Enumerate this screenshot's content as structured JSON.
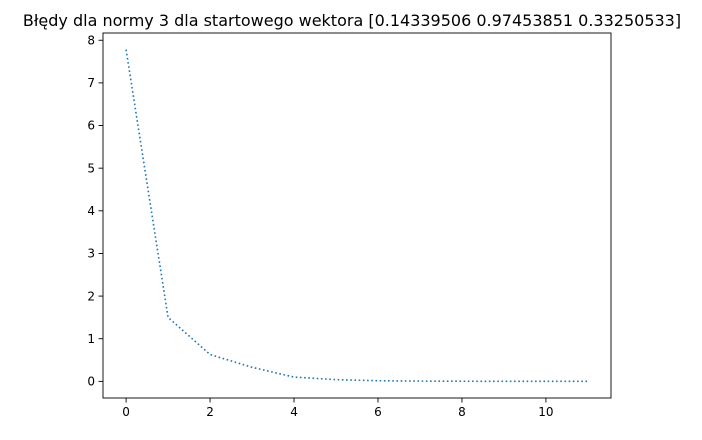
{
  "chart_data": {
    "type": "line",
    "title": "Błędy dla normy 3 dla startowego wektora [0.14339506 0.97453851 0.33250533]",
    "xlabel": "",
    "ylabel": "",
    "x": [
      0,
      1,
      2,
      3,
      4,
      5,
      6,
      7,
      8,
      9,
      10,
      11
    ],
    "series": [
      {
        "values": [
          7.78,
          1.5,
          0.63,
          0.33,
          0.1,
          0.04,
          0.015,
          0.006,
          0.003,
          0.001,
          0.0005,
          0.0002
        ],
        "color": "#1f77b4",
        "line_style": "dotted"
      }
    ],
    "xlim": [
      -0.55,
      11.55
    ],
    "ylim": [
      -0.39,
      8.17
    ],
    "xticks": [
      0,
      2,
      4,
      6,
      8,
      10
    ],
    "yticks": [
      0,
      1,
      2,
      3,
      4,
      5,
      6,
      7,
      8
    ],
    "grid": false
  }
}
